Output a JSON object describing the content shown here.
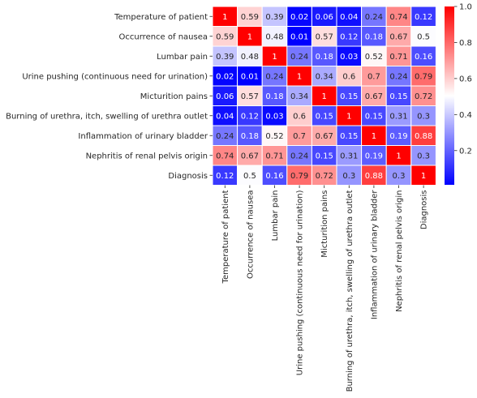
{
  "chart_data": {
    "type": "heatmap",
    "title": "",
    "xlabel": "",
    "ylabel": "",
    "variables": [
      "Temperature of patient",
      "Occurrence of nausea",
      "Lumbar pain",
      "Urine pushing (continuous need for urination)",
      "Micturition pains",
      "Burning of urethra, itch, swelling of urethra outlet",
      "Inflammation of urinary bladder",
      "Nephritis of renal pelvis origin",
      "Diagnosis"
    ],
    "values": [
      [
        1,
        0.59,
        0.39,
        0.02,
        0.06,
        0.04,
        0.24,
        0.74,
        0.12
      ],
      [
        0.59,
        1,
        0.48,
        0.01,
        0.57,
        0.12,
        0.18,
        0.67,
        0.5
      ],
      [
        0.39,
        0.48,
        1,
        0.24,
        0.18,
        0.03,
        0.52,
        0.71,
        0.16
      ],
      [
        0.02,
        0.01,
        0.24,
        1,
        0.34,
        0.6,
        0.7,
        0.24,
        0.79
      ],
      [
        0.06,
        0.57,
        0.18,
        0.34,
        1,
        0.15,
        0.67,
        0.15,
        0.72
      ],
      [
        0.04,
        0.12,
        0.03,
        0.6,
        0.15,
        1,
        0.15,
        0.31,
        0.3
      ],
      [
        0.24,
        0.18,
        0.52,
        0.7,
        0.67,
        0.15,
        1,
        0.19,
        0.88
      ],
      [
        0.74,
        0.67,
        0.71,
        0.24,
        0.15,
        0.31,
        0.19,
        1,
        0.3
      ],
      [
        0.12,
        0.5,
        0.16,
        0.79,
        0.72,
        0.3,
        0.88,
        0.3,
        1
      ]
    ],
    "annotated": true,
    "colormap": "bwr",
    "colormap_colors": {
      "low": "#0000ff",
      "mid": "#ffffff",
      "high": "#ff0000"
    },
    "vmin": 0.01,
    "vmax": 1,
    "colorbar_ticks": [
      0.2,
      0.4,
      0.6,
      0.8,
      1.0
    ],
    "colorbar_tick_labels": [
      "0.2",
      "0.4",
      "0.6",
      "0.8",
      "1.0"
    ],
    "grid": false,
    "cell_separator_color": "#ffffff"
  }
}
